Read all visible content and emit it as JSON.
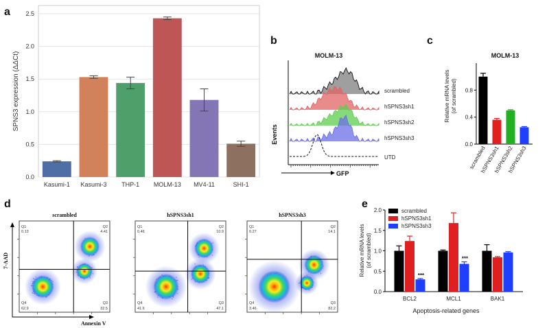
{
  "figure": {
    "panel_labels": {
      "a": "a",
      "b": "b",
      "c": "c",
      "d": "d",
      "e": "e"
    }
  },
  "chart_data": [
    {
      "panel": "a",
      "type": "bar",
      "title": "",
      "xlabel": "",
      "ylabel": "SPNS3 expression (ΔΔCt)",
      "ylim": [
        0,
        2.5
      ],
      "yticks": [
        "0.0",
        "0.5",
        "1.0",
        "1.5",
        "2.0",
        "2.5"
      ],
      "grid": true,
      "categories": [
        "Kasumi-1",
        "Kasumi-3",
        "THP-1",
        "MOLM-13",
        "MV4-11",
        "SHI-1"
      ],
      "values": [
        0.24,
        1.53,
        1.44,
        2.43,
        1.18,
        0.51
      ],
      "errors": [
        0.01,
        0.02,
        0.09,
        0.02,
        0.17,
        0.04
      ],
      "colors": [
        "#4e6fa6",
        "#d2825a",
        "#4f9f6a",
        "#bf5656",
        "#8476b4",
        "#8d7060"
      ]
    },
    {
      "panel": "b",
      "type": "histogram-overlay",
      "title": "MOLM-13",
      "xlabel": "GFP",
      "ylabel": "Events",
      "series": [
        {
          "name": "scrambled",
          "color": "#7f7f7f"
        },
        {
          "name": "hSPNS3sh1",
          "color": "#e26464"
        },
        {
          "name": "hSPNS3sh2",
          "color": "#5fcd4e"
        },
        {
          "name": "hSPNS3sh3",
          "color": "#6b6fe8"
        },
        {
          "name": "UTD",
          "color": "#111111"
        }
      ]
    },
    {
      "panel": "c",
      "type": "bar",
      "title": "MOLM-13",
      "xlabel": "",
      "ylabel": "Relative mRNA levels (of scrambled)",
      "ylim": [
        0,
        1.2
      ],
      "yticks": [
        "0.0",
        "0.4",
        "0.8"
      ],
      "categories": [
        "scrambled",
        "hSPNS3sh1",
        "hSPNS3sh2",
        "hSPNS3sh3"
      ],
      "values": [
        1.0,
        0.36,
        0.5,
        0.25
      ],
      "errors": [
        0.05,
        0.02,
        0.01,
        0.01
      ],
      "colors": [
        "#000000",
        "#e02020",
        "#22b022",
        "#1f3fff"
      ]
    },
    {
      "panel": "d",
      "type": "scatter-density",
      "xlabel": "Annexin V",
      "ylabel": "7-AAD",
      "plots": [
        {
          "title": "scrambled",
          "quadrants": {
            "Q1": "Q1",
            "Q2": "Q2",
            "Q3": "Q3",
            "Q4": "Q4"
          },
          "values": {
            "Q1": "0.13",
            "Q2": "4.41",
            "Q3": "32.5",
            "Q4": "62.9"
          }
        },
        {
          "title": "hSPNS3sh1",
          "quadrants": {
            "Q1": "Q1",
            "Q2": "Q2",
            "Q3": "Q3",
            "Q4": "Q4"
          },
          "values": {
            "Q1": "0.46",
            "Q2": "10.9",
            "Q3": "47.1",
            "Q4": "41.6"
          }
        },
        {
          "title": "hSPNS3sh3",
          "quadrants": {
            "Q1": "Q1",
            "Q2": "Q2",
            "Q3": "Q3",
            "Q4": "Q4"
          },
          "values": {
            "Q1": "0.27",
            "Q2": "14.1",
            "Q3": "82.2",
            "Q4": "3.46"
          }
        }
      ]
    },
    {
      "panel": "e",
      "type": "bar",
      "title": "",
      "xlabel": "Apoptosis-related genes",
      "ylabel": "Relative mRNA levels (of scrambled)",
      "ylim": [
        0,
        2.0
      ],
      "yticks": [
        "0.0",
        "0.5",
        "1.0",
        "1.5",
        "2.0"
      ],
      "categories": [
        "BCL2",
        "MCL1",
        "BAK1"
      ],
      "series": [
        {
          "name": "scrambled",
          "color": "#000000",
          "values": [
            1.0,
            1.0,
            1.0
          ],
          "errors": [
            0.12,
            0.02,
            0.15
          ]
        },
        {
          "name": "hSPNS3sh1",
          "color": "#e02020",
          "values": [
            1.24,
            1.68,
            0.84
          ],
          "errors": [
            0.12,
            0.25,
            0.02
          ]
        },
        {
          "name": "hSPNS3sh3",
          "color": "#1f3fff",
          "values": [
            0.3,
            0.68,
            0.96
          ],
          "errors": [
            0.02,
            0.05,
            0.02
          ]
        }
      ],
      "annotations": [
        {
          "category": "BCL2",
          "series": "hSPNS3sh3",
          "text": "***"
        },
        {
          "category": "MCL1",
          "series": "hSPNS3sh3",
          "text": "***"
        }
      ]
    }
  ]
}
